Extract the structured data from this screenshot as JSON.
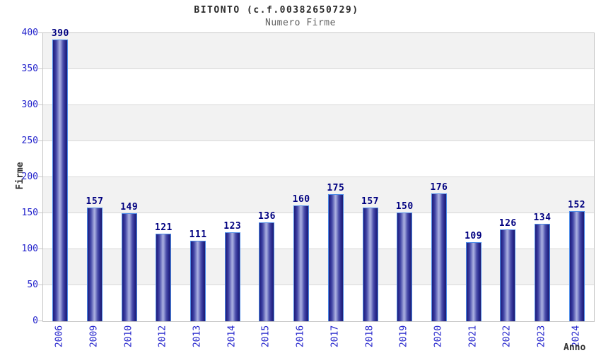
{
  "chart_data": {
    "type": "bar",
    "title": "BITONTO (c.f.00382650729)",
    "subtitle": "Numero Firme",
    "xlabel": "Anno",
    "ylabel": "Firme",
    "categories": [
      "2006",
      "2009",
      "2010",
      "2012",
      "2013",
      "2014",
      "2015",
      "2016",
      "2017",
      "2018",
      "2019",
      "2020",
      "2021",
      "2022",
      "2023",
      "2024"
    ],
    "values": [
      390,
      157,
      149,
      121,
      111,
      123,
      136,
      160,
      175,
      157,
      150,
      176,
      109,
      126,
      134,
      152
    ],
    "ylim": [
      0,
      400
    ],
    "yticks": [
      0,
      50,
      100,
      150,
      200,
      250,
      300,
      350,
      400
    ],
    "grid": true,
    "legend_position": "none",
    "style": {
      "bar_fill_dark": "#20207a",
      "bar_fill_light": "#abb0e0",
      "bar_border": "#4e8ce8",
      "value_label_color": "#000080",
      "tick_label_color": "#2424cc",
      "axis_title_color": "#333333",
      "title_color": "#2b2b2b",
      "subtitle_color": "#5f5f5f",
      "band_gray": "#f2f2f2",
      "gridline_color": "#d8d8d8",
      "frame_color": "#c6c6c6"
    }
  }
}
